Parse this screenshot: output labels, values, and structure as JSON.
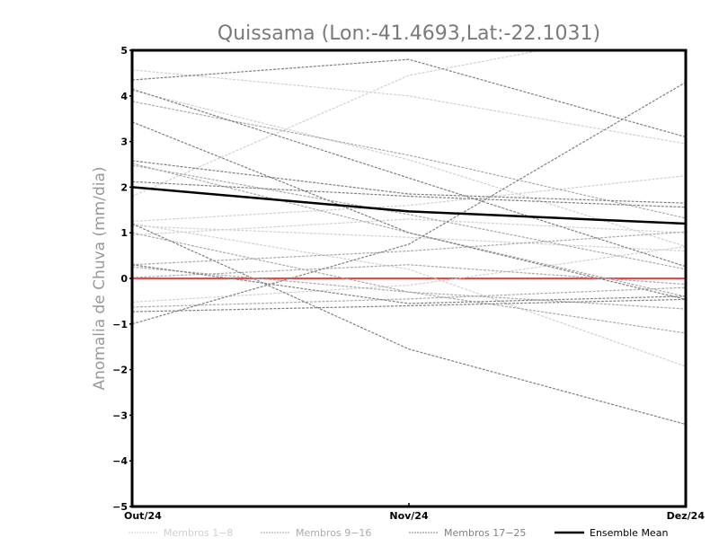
{
  "chart_data": {
    "type": "line",
    "title": "Quissama (Lon:-41.4693,Lat:-22.1031)",
    "xlabel": "",
    "ylabel": "Anomalia de Chuva (mm/dia)",
    "categories": [
      "Out/24",
      "Nov/24",
      "Dez/24"
    ],
    "ylim": [
      -5,
      5
    ],
    "yticks": [
      "5",
      "4",
      "3",
      "2",
      "1",
      "0",
      "-1",
      "-2",
      "-3",
      "-4",
      "-5"
    ],
    "reference_line": {
      "value": 0,
      "color": "#ff4040"
    },
    "groups": [
      {
        "name": "Membros 1-8",
        "color": "#d0d0d0",
        "members": [
          [
            1.8,
            4.45,
            5.6
          ],
          [
            4.57,
            4.0,
            2.95
          ],
          [
            4.12,
            2.6,
            0.7
          ],
          [
            1.25,
            1.6,
            2.25
          ],
          [
            1.15,
            0.9,
            0.6
          ],
          [
            0.95,
            1.3,
            1.0
          ],
          [
            -0.52,
            -0.15,
            0.7
          ],
          [
            1.2,
            0.2,
            -1.93
          ]
        ]
      },
      {
        "name": "Membros 9-16",
        "color": "#aaaaaa",
        "members": [
          [
            2.52,
            1.0,
            -0.4
          ],
          [
            0.3,
            0.6,
            1.02
          ],
          [
            1.0,
            -0.3,
            -1.2
          ],
          [
            0.02,
            0.3,
            -0.13
          ],
          [
            2.48,
            1.4,
            0.2
          ],
          [
            -0.63,
            -0.45,
            -0.2
          ],
          [
            3.88,
            2.7,
            1.32
          ],
          [
            0.25,
            -0.3,
            -0.67
          ]
        ]
      },
      {
        "name": "Membros 17-25",
        "color": "#808080",
        "members": [
          [
            4.35,
            4.8,
            3.1
          ],
          [
            4.15,
            2.2,
            0.26
          ],
          [
            3.43,
            1.0,
            -0.46
          ],
          [
            2.58,
            1.85,
            1.65
          ],
          [
            2.12,
            1.8,
            1.56
          ],
          [
            -1.0,
            0.75,
            4.3
          ],
          [
            -0.73,
            -0.6,
            -0.46
          ],
          [
            0.3,
            -0.55,
            -0.39
          ],
          [
            1.2,
            -1.55,
            -3.2
          ]
        ]
      }
    ],
    "ensemble_mean": {
      "name": "Ensemble Mean",
      "color": "#000000",
      "values": [
        2.0,
        1.47,
        1.2
      ]
    },
    "legend_position": "bottom"
  }
}
